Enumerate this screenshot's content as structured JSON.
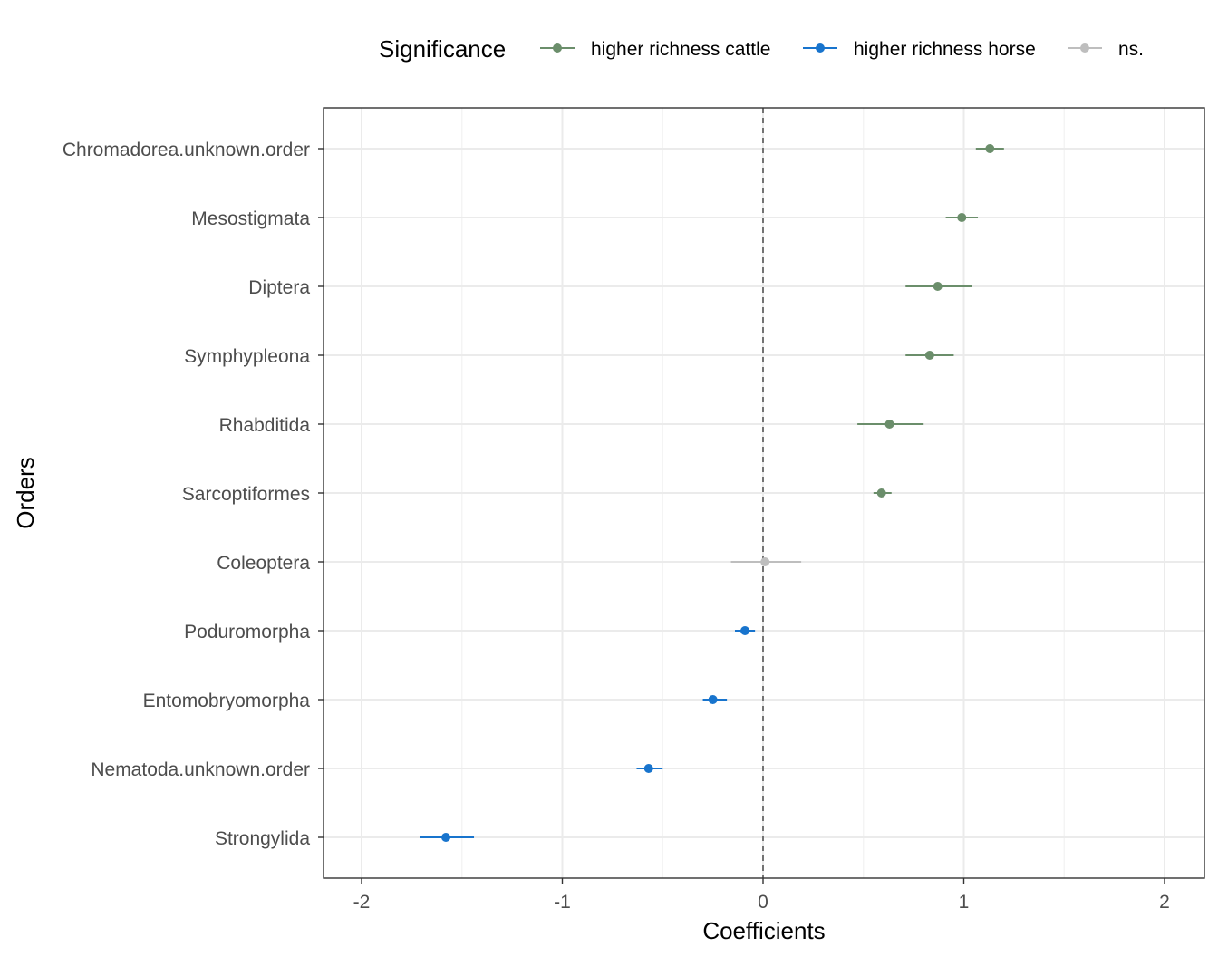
{
  "chart_data": {
    "type": "scatter",
    "xlabel": "Coefficients",
    "ylabel": "Orders",
    "xlim": [
      -2.2,
      2.2
    ],
    "x_ticks": [
      "-2",
      "-1",
      "0",
      "1",
      "2"
    ],
    "reference_line": 0,
    "grid": true,
    "legend": {
      "title": "Significance",
      "position": "top",
      "entries": [
        {
          "label": "higher richness cattle",
          "color": "#6b8e6b"
        },
        {
          "label": "higher richness horse",
          "color": "#1874cd"
        },
        {
          "label": "ns.",
          "color": "#bebebe"
        }
      ]
    },
    "categories": [
      "Chromadorea.unknown.order",
      "Mesostigmata",
      "Diptera",
      "Symphypleona",
      "Rhabditida",
      "Sarcoptiformes",
      "Coleoptera",
      "Poduromorpha",
      "Entomobryomorpha",
      "Nematoda.unknown.order",
      "Strongylida"
    ],
    "points": [
      {
        "order": "Chromadorea.unknown.order",
        "estimate": 1.13,
        "low": 1.06,
        "high": 1.2,
        "group": 0
      },
      {
        "order": "Mesostigmata",
        "estimate": 0.99,
        "low": 0.91,
        "high": 1.07,
        "group": 0
      },
      {
        "order": "Diptera",
        "estimate": 0.87,
        "low": 0.71,
        "high": 1.04,
        "group": 0
      },
      {
        "order": "Symphypleona",
        "estimate": 0.83,
        "low": 0.71,
        "high": 0.95,
        "group": 0
      },
      {
        "order": "Rhabditida",
        "estimate": 0.63,
        "low": 0.47,
        "high": 0.8,
        "group": 0
      },
      {
        "order": "Sarcoptiformes",
        "estimate": 0.59,
        "low": 0.55,
        "high": 0.64,
        "group": 0
      },
      {
        "order": "Coleoptera",
        "estimate": 0.01,
        "low": -0.16,
        "high": 0.19,
        "group": 2
      },
      {
        "order": "Poduromorpha",
        "estimate": -0.09,
        "low": -0.14,
        "high": -0.04,
        "group": 1
      },
      {
        "order": "Entomobryomorpha",
        "estimate": -0.25,
        "low": -0.3,
        "high": -0.18,
        "group": 1
      },
      {
        "order": "Nematoda.unknown.order",
        "estimate": -0.57,
        "low": -0.63,
        "high": -0.5,
        "group": 1
      },
      {
        "order": "Strongylida",
        "estimate": -1.58,
        "low": -1.71,
        "high": -1.44,
        "group": 1
      }
    ]
  }
}
